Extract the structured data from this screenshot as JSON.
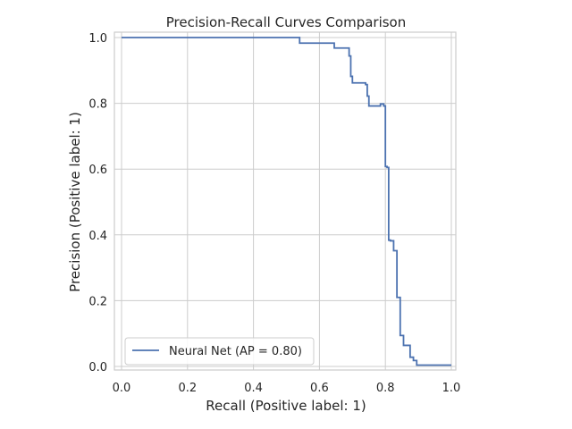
{
  "chart_data": {
    "type": "line",
    "title": "Precision-Recall Curves Comparison",
    "xlabel": "Recall (Positive label: 1)",
    "ylabel": "Precision (Positive label: 1)",
    "xlim": [
      0.0,
      1.0
    ],
    "ylim": [
      0.0,
      1.0
    ],
    "xticks": [
      "0.0",
      "0.2",
      "0.4",
      "0.6",
      "0.8",
      "1.0"
    ],
    "yticks": [
      "0.0",
      "0.2",
      "0.4",
      "0.6",
      "0.8",
      "1.0"
    ],
    "grid": true,
    "legend_position": "lower-left",
    "series": [
      {
        "name": "Neural Net (AP = 0.80)",
        "color": "#4c72b0",
        "step": true,
        "x": [
          0.0,
          0.535,
          0.54,
          0.64,
          0.645,
          0.685,
          0.69,
          0.695,
          0.7,
          0.705,
          0.735,
          0.74,
          0.745,
          0.75,
          0.78,
          0.785,
          0.795,
          0.8,
          0.805,
          0.81,
          0.815,
          0.825,
          0.83,
          0.835,
          0.84,
          0.845,
          0.855,
          0.86,
          0.87,
          0.875,
          0.88,
          0.885,
          0.89,
          0.895,
          0.9,
          1.0
        ],
        "y": [
          1.0,
          1.0,
          0.983,
          0.983,
          0.968,
          0.968,
          0.944,
          0.882,
          0.862,
          0.862,
          0.862,
          0.857,
          0.822,
          0.792,
          0.792,
          0.798,
          0.792,
          0.608,
          0.605,
          0.384,
          0.382,
          0.352,
          0.352,
          0.21,
          0.21,
          0.094,
          0.064,
          0.064,
          0.064,
          0.028,
          0.028,
          0.018,
          0.018,
          0.004,
          0.004,
          0.004
        ]
      }
    ]
  }
}
